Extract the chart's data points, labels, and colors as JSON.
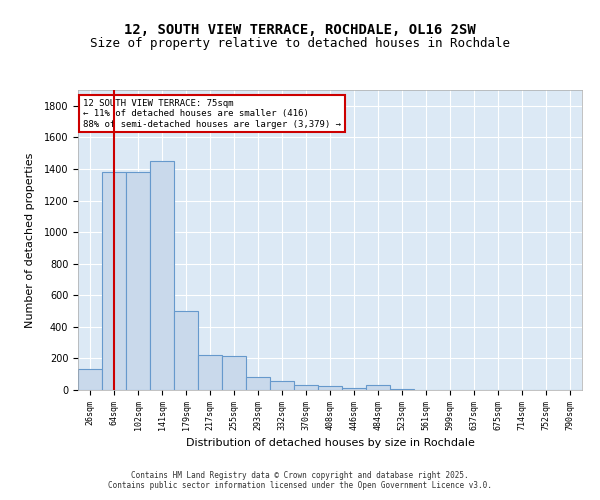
{
  "title1": "12, SOUTH VIEW TERRACE, ROCHDALE, OL16 2SW",
  "title2": "Size of property relative to detached houses in Rochdale",
  "xlabel": "Distribution of detached houses by size in Rochdale",
  "ylabel": "Number of detached properties",
  "categories": [
    "26sqm",
    "64sqm",
    "102sqm",
    "141sqm",
    "179sqm",
    "217sqm",
    "255sqm",
    "293sqm",
    "332sqm",
    "370sqm",
    "408sqm",
    "446sqm",
    "484sqm",
    "523sqm",
    "561sqm",
    "599sqm",
    "637sqm",
    "675sqm",
    "714sqm",
    "752sqm",
    "790sqm"
  ],
  "values": [
    130,
    1380,
    1380,
    1450,
    500,
    220,
    215,
    80,
    55,
    30,
    25,
    15,
    30,
    5,
    2,
    1,
    1,
    0,
    0,
    0,
    0
  ],
  "bar_color": "#c9d9eb",
  "bar_edge_color": "#6699cc",
  "grid_color": "#ffffff",
  "bg_color": "#dce9f5",
  "vline_x": 1,
  "vline_color": "#cc0000",
  "annotation_text": "12 SOUTH VIEW TERRACE: 75sqm\n← 11% of detached houses are smaller (416)\n88% of semi-detached houses are larger (3,379) →",
  "annotation_box_color": "#ffffff",
  "annotation_border_color": "#cc0000",
  "footer1": "Contains HM Land Registry data © Crown copyright and database right 2025.",
  "footer2": "Contains public sector information licensed under the Open Government Licence v3.0.",
  "ylim": [
    0,
    1900
  ],
  "yticks": [
    0,
    200,
    400,
    600,
    800,
    1000,
    1200,
    1400,
    1600,
    1800
  ]
}
